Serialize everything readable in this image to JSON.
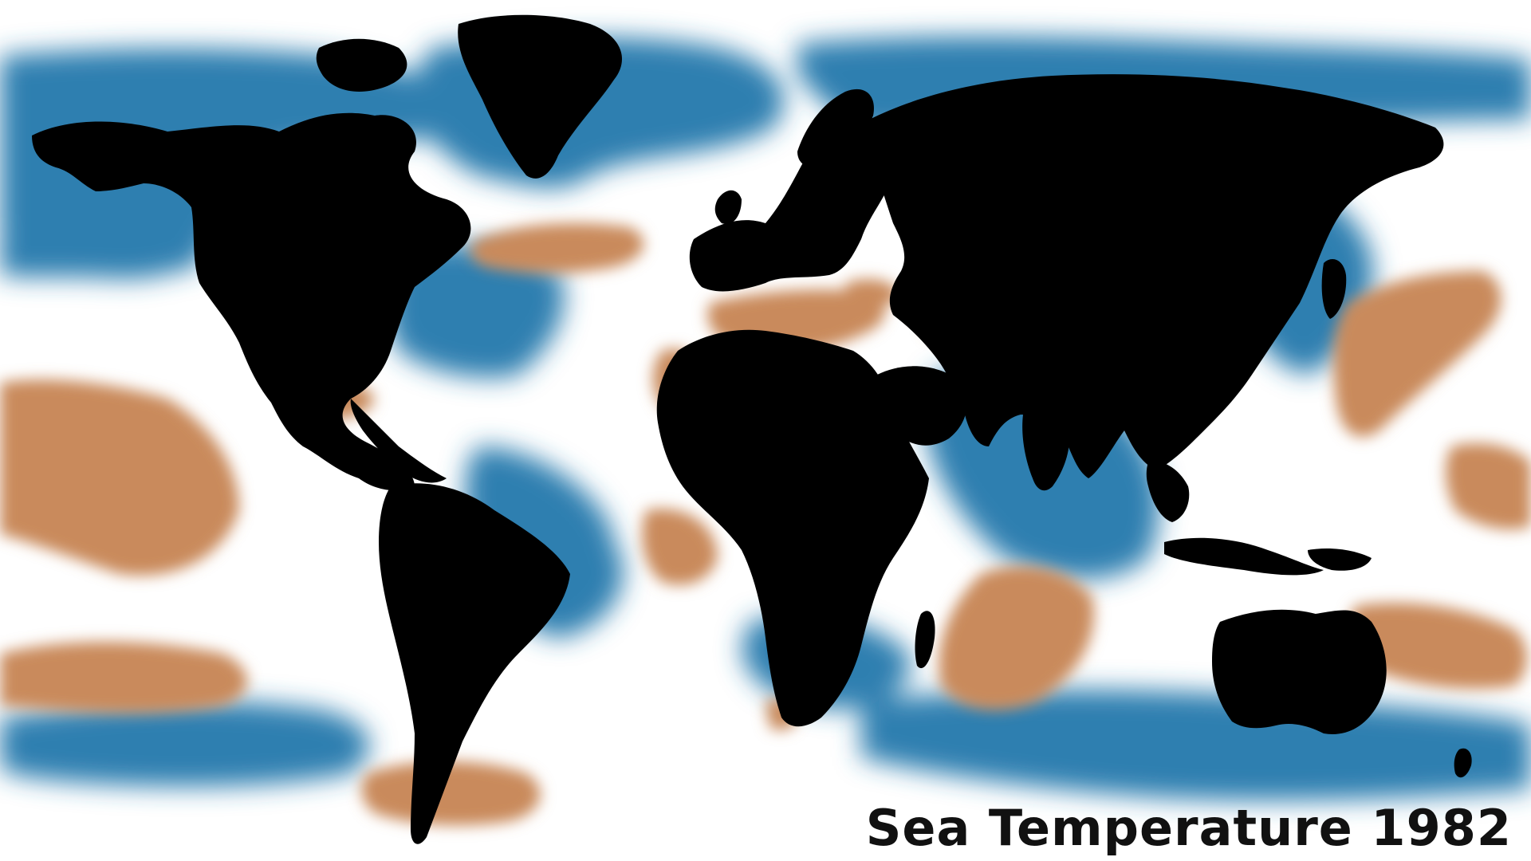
{
  "title": "Sea Temperature 1982",
  "colors": {
    "ocean_base": "#ffffff",
    "cold_anomaly": "#2f7fb0",
    "warm_anomaly": "#c98a5c",
    "land": "#000000",
    "title_text": "#111111"
  },
  "legend_semantics": {
    "cold_anomaly": "cooler sea temperature",
    "warm_anomaly": "warmer sea temperature",
    "land": "land mass"
  }
}
